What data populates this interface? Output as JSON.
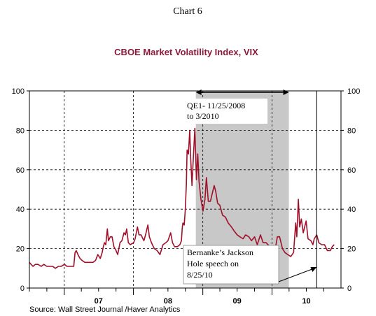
{
  "chart_data": {
    "type": "line",
    "header": "Chart 6",
    "title": "CBOE Market Volatility Index, VIX",
    "source": "Source:  Wall Street Journal /Haver Analytics",
    "y_ticks": [
      "0",
      "20",
      "40",
      "60",
      "80",
      "100"
    ],
    "ylim": [
      0,
      100
    ],
    "x_ticks": [
      "07",
      "08",
      "09",
      "10"
    ],
    "xlim": [
      "2006-07-01",
      "2010-12-31"
    ],
    "grid": true,
    "annotations": [
      {
        "text_lines": [
          "QE1- 11/25/2008",
          "to 3/2010"
        ],
        "start": "2008-11-25",
        "end": "2010-03-31"
      },
      {
        "text_lines": [
          "Bernanke’s Jackson",
          "Hole speech on",
          "8/25/10"
        ],
        "date": "2010-08-25"
      }
    ],
    "colors": {
      "series": "#a0102a",
      "shade": "#c8c8c8",
      "axis": "#000000",
      "title": "#8b1a3a"
    },
    "series": [
      {
        "values": [
          [
            "2006-07-01",
            13
          ],
          [
            "2006-07-10",
            12
          ],
          [
            "2006-07-20",
            11
          ],
          [
            "2006-08-01",
            12
          ],
          [
            "2006-08-15",
            12
          ],
          [
            "2006-09-01",
            11
          ],
          [
            "2006-09-15",
            12
          ],
          [
            "2006-10-01",
            11
          ],
          [
            "2006-10-15",
            11
          ],
          [
            "2006-11-01",
            11
          ],
          [
            "2006-11-15",
            10
          ],
          [
            "2006-12-01",
            11
          ],
          [
            "2006-12-15",
            11
          ],
          [
            "2007-01-02",
            12
          ],
          [
            "2007-01-15",
            11
          ],
          [
            "2007-02-01",
            11
          ],
          [
            "2007-02-20",
            11
          ],
          [
            "2007-02-27",
            18
          ],
          [
            "2007-03-05",
            19
          ],
          [
            "2007-03-14",
            17
          ],
          [
            "2007-03-25",
            15
          ],
          [
            "2007-04-05",
            14
          ],
          [
            "2007-04-20",
            13
          ],
          [
            "2007-05-01",
            13
          ],
          [
            "2007-05-15",
            13
          ],
          [
            "2007-06-01",
            13
          ],
          [
            "2007-06-15",
            14
          ],
          [
            "2007-06-27",
            17
          ],
          [
            "2007-07-10",
            15
          ],
          [
            "2007-07-20",
            18
          ],
          [
            "2007-07-26",
            21
          ],
          [
            "2007-08-01",
            23
          ],
          [
            "2007-08-08",
            22
          ],
          [
            "2007-08-16",
            30
          ],
          [
            "2007-08-22",
            24
          ],
          [
            "2007-09-01",
            26
          ],
          [
            "2007-09-10",
            26
          ],
          [
            "2007-09-20",
            21
          ],
          [
            "2007-10-01",
            19
          ],
          [
            "2007-10-10",
            17
          ],
          [
            "2007-10-22",
            23
          ],
          [
            "2007-11-01",
            24
          ],
          [
            "2007-11-12",
            28
          ],
          [
            "2007-11-20",
            27
          ],
          [
            "2007-11-26",
            30
          ],
          [
            "2007-12-05",
            23
          ],
          [
            "2007-12-15",
            22
          ],
          [
            "2008-01-02",
            23
          ],
          [
            "2008-01-10",
            25
          ],
          [
            "2008-01-22",
            31
          ],
          [
            "2008-01-30",
            27
          ],
          [
            "2008-02-10",
            27
          ],
          [
            "2008-02-25",
            24
          ],
          [
            "2008-03-05",
            27
          ],
          [
            "2008-03-17",
            32
          ],
          [
            "2008-03-25",
            26
          ],
          [
            "2008-04-05",
            23
          ],
          [
            "2008-04-20",
            20
          ],
          [
            "2008-05-05",
            19
          ],
          [
            "2008-05-20",
            17
          ],
          [
            "2008-06-05",
            22
          ],
          [
            "2008-06-20",
            23
          ],
          [
            "2008-07-01",
            24
          ],
          [
            "2008-07-15",
            28
          ],
          [
            "2008-07-25",
            23
          ],
          [
            "2008-08-05",
            21
          ],
          [
            "2008-08-20",
            21
          ],
          [
            "2008-09-02",
            22
          ],
          [
            "2008-09-10",
            24
          ],
          [
            "2008-09-15",
            31
          ],
          [
            "2008-09-18",
            33
          ],
          [
            "2008-09-25",
            32
          ],
          [
            "2008-09-30",
            39
          ],
          [
            "2008-10-06",
            52
          ],
          [
            "2008-10-10",
            70
          ],
          [
            "2008-10-17",
            68
          ],
          [
            "2008-10-24",
            80
          ],
          [
            "2008-10-29",
            66
          ],
          [
            "2008-11-05",
            52
          ],
          [
            "2008-11-12",
            66
          ],
          [
            "2008-11-20",
            81
          ],
          [
            "2008-11-28",
            55
          ],
          [
            "2008-12-05",
            68
          ],
          [
            "2008-12-12",
            54
          ],
          [
            "2008-12-22",
            45
          ],
          [
            "2009-01-02",
            39
          ],
          [
            "2009-01-12",
            45
          ],
          [
            "2009-01-20",
            56
          ],
          [
            "2009-01-30",
            44
          ],
          [
            "2009-02-10",
            44
          ],
          [
            "2009-02-20",
            48
          ],
          [
            "2009-03-02",
            52
          ],
          [
            "2009-03-10",
            49
          ],
          [
            "2009-03-20",
            43
          ],
          [
            "2009-04-01",
            42
          ],
          [
            "2009-04-15",
            37
          ],
          [
            "2009-04-30",
            36
          ],
          [
            "2009-05-15",
            33
          ],
          [
            "2009-06-01",
            31
          ],
          [
            "2009-06-15",
            29
          ],
          [
            "2009-07-01",
            27
          ],
          [
            "2009-07-15",
            26
          ],
          [
            "2009-08-01",
            25
          ],
          [
            "2009-08-15",
            27
          ],
          [
            "2009-09-01",
            26
          ],
          [
            "2009-09-15",
            24
          ],
          [
            "2009-10-01",
            26
          ],
          [
            "2009-10-15",
            22
          ],
          [
            "2009-11-01",
            27
          ],
          [
            "2009-11-15",
            23
          ],
          [
            "2009-12-01",
            23
          ],
          [
            "2009-12-20",
            21
          ],
          [
            "2010-01-05",
            19
          ],
          [
            "2010-01-15",
            18
          ],
          [
            "2010-01-29",
            26
          ],
          [
            "2010-02-10",
            26
          ],
          [
            "2010-02-25",
            20
          ],
          [
            "2010-03-10",
            18
          ],
          [
            "2010-03-25",
            17
          ],
          [
            "2010-04-10",
            16
          ],
          [
            "2010-04-25",
            18
          ],
          [
            "2010-05-06",
            33
          ],
          [
            "2010-05-12",
            26
          ],
          [
            "2010-05-20",
            45
          ],
          [
            "2010-05-27",
            31
          ],
          [
            "2010-06-05",
            35
          ],
          [
            "2010-06-15",
            28
          ],
          [
            "2010-06-30",
            34
          ],
          [
            "2010-07-10",
            25
          ],
          [
            "2010-07-25",
            24
          ],
          [
            "2010-08-05",
            22
          ],
          [
            "2010-08-12",
            25
          ],
          [
            "2010-08-25",
            27
          ],
          [
            "2010-09-05",
            23
          ],
          [
            "2010-09-20",
            22
          ],
          [
            "2010-10-05",
            22
          ],
          [
            "2010-10-20",
            19
          ],
          [
            "2010-11-05",
            19
          ],
          [
            "2010-11-15",
            21
          ],
          [
            "2010-11-25",
            22
          ]
        ]
      }
    ]
  }
}
